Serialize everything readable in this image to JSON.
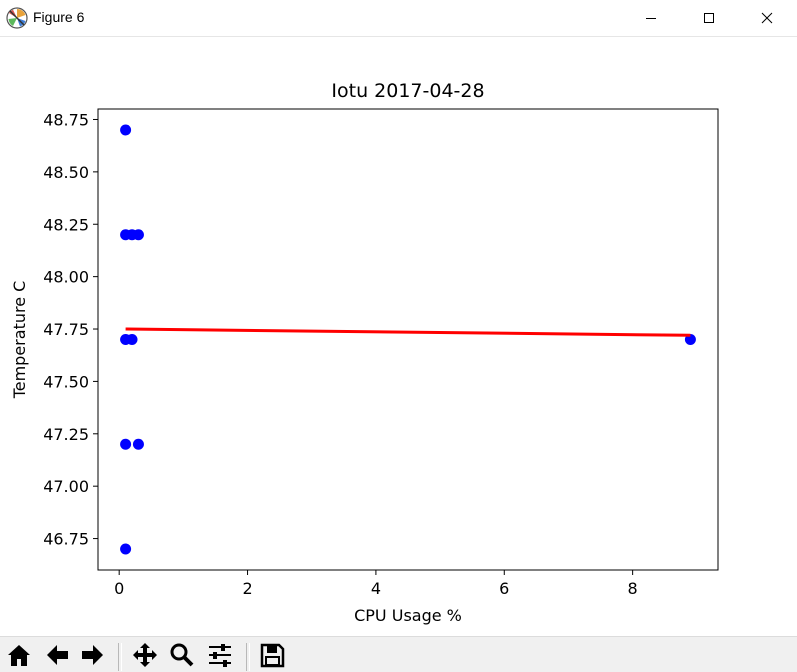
{
  "window": {
    "title": "Figure 6",
    "icon": "matplotlib-icon",
    "controls": [
      "minimize-icon",
      "maximize-icon",
      "close-icon"
    ]
  },
  "toolbar": {
    "buttons": [
      {
        "name": "home-button",
        "icon": "home-icon",
        "tooltip": "Reset original view"
      },
      {
        "name": "back-button",
        "icon": "arrow-left-icon",
        "tooltip": "Back to previous view"
      },
      {
        "name": "forward-button",
        "icon": "arrow-right-icon",
        "tooltip": "Forward to next view"
      },
      {
        "name": "pan-button",
        "icon": "move-icon",
        "tooltip": "Pan axes"
      },
      {
        "name": "zoom-button",
        "icon": "magnifier-icon",
        "tooltip": "Zoom to rectangle"
      },
      {
        "name": "subplots-button",
        "icon": "sliders-icon",
        "tooltip": "Configure subplots"
      },
      {
        "name": "save-button",
        "icon": "floppy-disk-icon",
        "tooltip": "Save the figure"
      }
    ]
  },
  "chart_data": {
    "type": "scatter",
    "title": "Iotu 2017-04-28",
    "xlabel": "CPU Usage %",
    "ylabel": "Temperature C",
    "xlim": [
      -0.33,
      9.33
    ],
    "ylim": [
      46.6,
      48.8
    ],
    "xticks": [
      0,
      2,
      4,
      6,
      8
    ],
    "yticks": [
      46.75,
      47.0,
      47.25,
      47.5,
      47.75,
      48.0,
      48.25,
      48.5,
      48.75
    ],
    "ytick_labels": [
      "46.75",
      "47.00",
      "47.25",
      "47.50",
      "47.75",
      "48.00",
      "48.25",
      "48.50",
      "48.75"
    ],
    "grid": false,
    "legend": "none",
    "series": [
      {
        "kind": "scatter",
        "color": "#0000ff",
        "points": [
          [
            0.1,
            48.7
          ],
          [
            0.1,
            48.2
          ],
          [
            0.2,
            48.2
          ],
          [
            0.3,
            48.2
          ],
          [
            0.1,
            47.7
          ],
          [
            0.2,
            47.7
          ],
          [
            8.9,
            47.7
          ],
          [
            0.1,
            47.2
          ],
          [
            0.3,
            47.2
          ],
          [
            0.1,
            46.7
          ]
        ]
      },
      {
        "kind": "line",
        "color": "#ff0000",
        "points": [
          [
            0.1,
            47.75
          ],
          [
            8.9,
            47.72
          ]
        ]
      }
    ]
  }
}
